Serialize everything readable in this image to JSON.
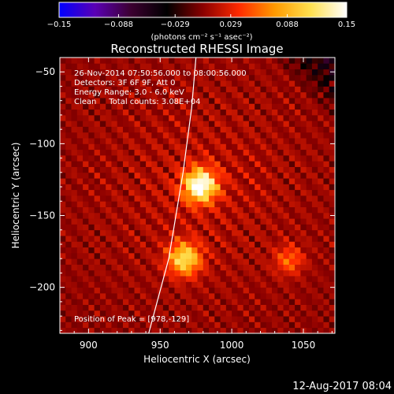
{
  "chart_data": {
    "type": "heatmap",
    "title": "Reconstructed RHESSI Image",
    "xlabel": "Heliocentric X (arcsec)",
    "ylabel": "Heliocentric Y (arcsec)",
    "xlim": [
      880,
      1072
    ],
    "ylim": [
      -232,
      -40
    ],
    "x_ticks": [
      900,
      950,
      1000,
      1050
    ],
    "y_ticks": [
      -50,
      -100,
      -150,
      -200
    ],
    "x_tick_labels": [
      "900",
      "950",
      "1000",
      "1050"
    ],
    "y_tick_labels": [
      "−50",
      "−100",
      "−150",
      "−200"
    ],
    "colorbar": {
      "range": [
        -0.15,
        0.15
      ],
      "ticks": [
        -0.15,
        -0.088,
        -0.029,
        0.029,
        0.088,
        0.15
      ],
      "tick_labels": [
        "−0.15",
        "−0.088",
        "−0.029",
        "0.029",
        "0.088",
        "0.15"
      ],
      "colormap": [
        "#0000ff",
        "#5a00b4",
        "#3c0030",
        "#000000",
        "#8a0000",
        "#ff2a00",
        "#ff9a00",
        "#ffe050",
        "#ffffff"
      ],
      "unit_label": "(photons cm⁻² s⁻¹ asec⁻²)"
    },
    "annotations": [
      "26-Nov-2014 07:50:56.000 to 08:00:56.000",
      "Detectors: 3F 6F 9F, Att 0",
      "Energy Range: 3.0 - 6.0 keV",
      "Clean     Total counts: 3.08E+04"
    ],
    "peak_label": "Position of Peak = [978,-129]",
    "peak": [
      978,
      -129
    ],
    "sources": [
      {
        "x": 978,
        "y": -129,
        "value": 0.15
      },
      {
        "x": 967,
        "y": -180,
        "value": 0.11
      },
      {
        "x": 1040,
        "y": -181,
        "value": 0.05
      }
    ],
    "limb_curve": [
      [
        942,
        -232
      ],
      [
        956,
        -180
      ],
      [
        966,
        -120
      ],
      [
        972,
        -75
      ],
      [
        975,
        -40
      ]
    ],
    "grid": false
  },
  "footer_date": "12-Aug-2017 08:04"
}
